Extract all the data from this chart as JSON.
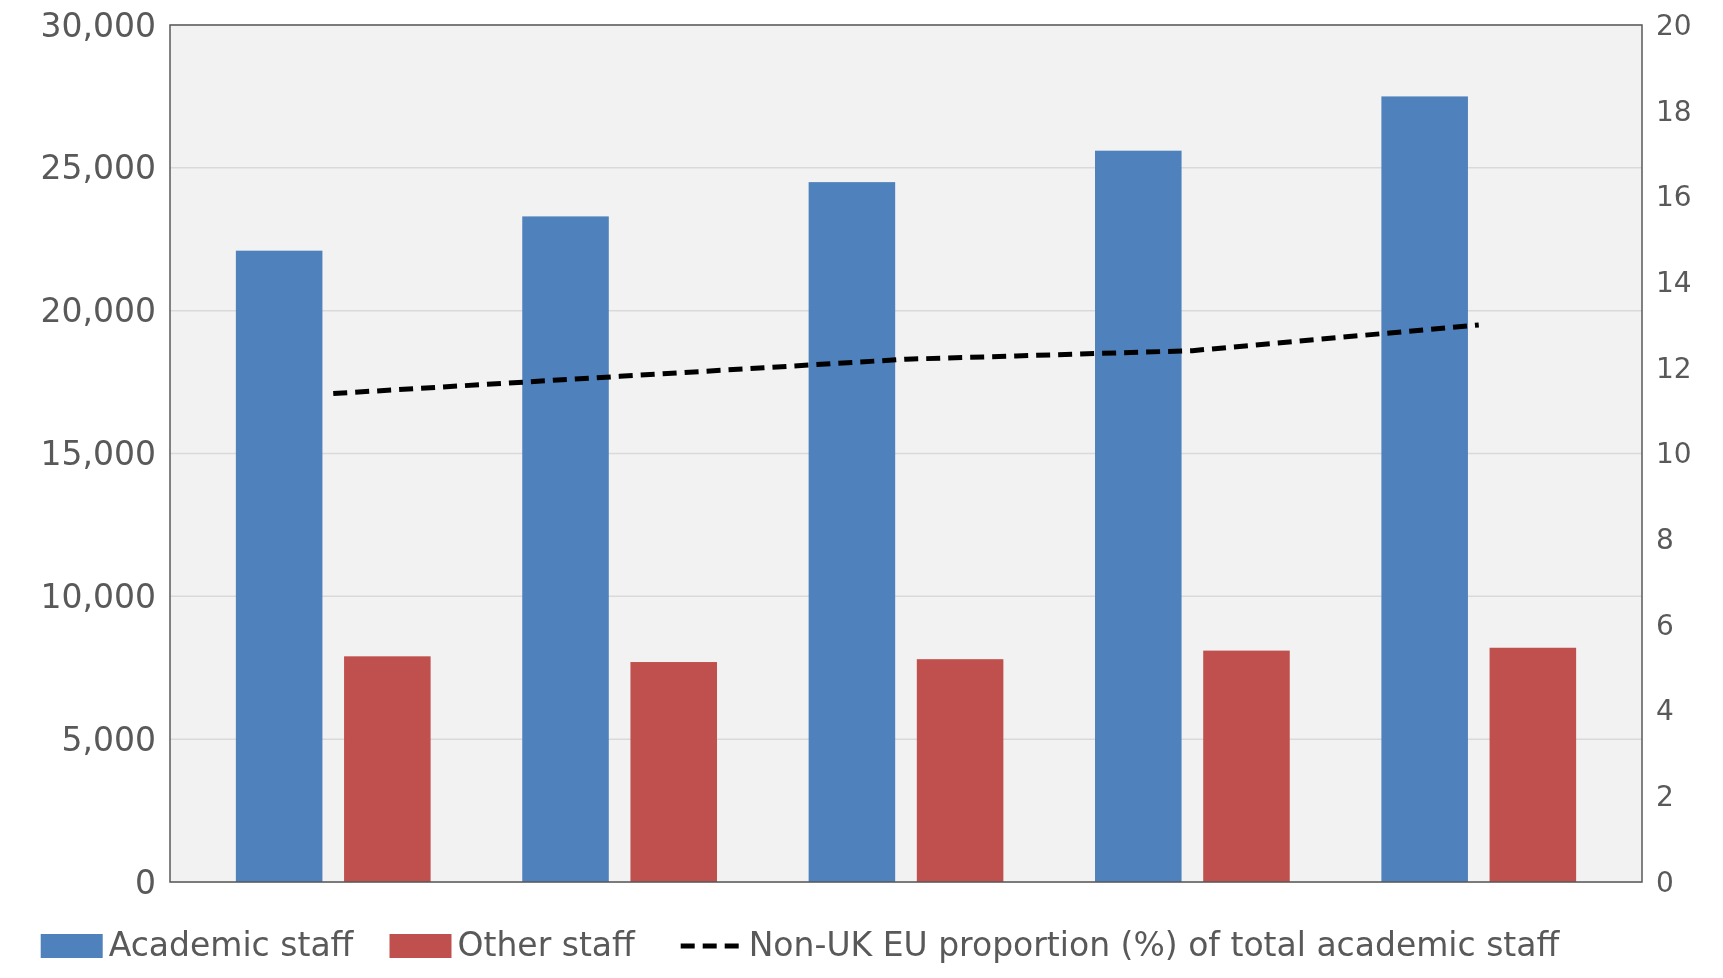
{
  "chart_data": {
    "type": "bar",
    "categories": [
      null,
      null,
      null,
      null,
      null
    ],
    "series": [
      {
        "name": "Academic staff",
        "color": "#4f81bd",
        "values": [
          22100,
          23300,
          24500,
          25600,
          27500
        ]
      },
      {
        "name": "Other staff",
        "color": "#c0504d",
        "values": [
          7900,
          7700,
          7800,
          8100,
          8200
        ]
      },
      {
        "name": "Non-UK EU proportion (%) of total academic staff",
        "type": "line",
        "axis": "y2",
        "color": "#000000",
        "line_style": "dashed",
        "marker": "none",
        "values": [
          11.4,
          11.8,
          12.2,
          12.4,
          13.0
        ]
      }
    ],
    "ylim": [
      0,
      30000
    ],
    "yticks": [
      {
        "value": 0,
        "label": "0"
      },
      {
        "value": 5000,
        "label": "5,000"
      },
      {
        "value": 10000,
        "label": "10,000"
      },
      {
        "value": 15000,
        "label": "15,000"
      },
      {
        "value": 20000,
        "label": "20,000"
      },
      {
        "value": 25000,
        "label": "25,000"
      },
      {
        "value": 30000,
        "label": "30,000"
      }
    ],
    "y2lim": [
      0,
      20
    ],
    "y2ticks": [
      0,
      2,
      4,
      6,
      8,
      10,
      12,
      14,
      16,
      18,
      20
    ],
    "grid": "y",
    "legend": "bottom"
  }
}
